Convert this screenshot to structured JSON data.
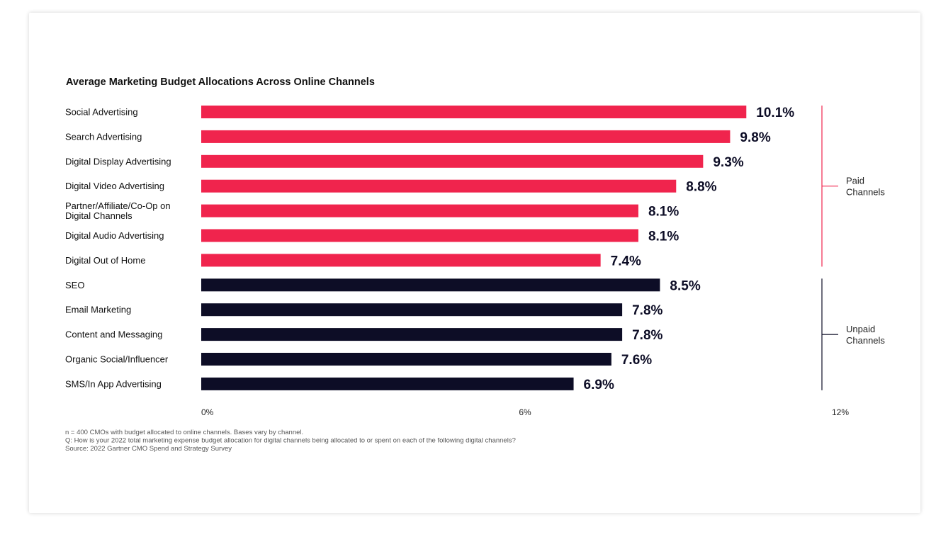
{
  "chart_data": {
    "type": "bar",
    "orientation": "horizontal",
    "title": "Average Marketing Budget Allocations Across Online Channels",
    "categories": [
      [
        "Social Advertising"
      ],
      [
        "Search Advertising"
      ],
      [
        "Digital Display Advertising"
      ],
      [
        "Digital Video Advertising"
      ],
      [
        "Partner/Affiliate/Co-Op on",
        "Digital Channels"
      ],
      [
        "Digital Audio Advertising"
      ],
      [
        "Digital Out of Home"
      ],
      [
        "SEO"
      ],
      [
        "Email Marketing"
      ],
      [
        "Content and Messaging"
      ],
      [
        "Organic Social/Influencer"
      ],
      [
        "SMS/In App Advertising"
      ]
    ],
    "values": [
      10.1,
      9.8,
      9.3,
      8.8,
      8.1,
      8.1,
      7.4,
      8.5,
      7.8,
      7.8,
      7.6,
      6.9
    ],
    "value_labels": [
      "10.1%",
      "9.8%",
      "9.3%",
      "8.8%",
      "8.1%",
      "8.1%",
      "7.4%",
      "8.5%",
      "7.8%",
      "7.8%",
      "7.6%",
      "6.9%"
    ],
    "groups": [
      {
        "label": [
          "Paid",
          "Channels"
        ],
        "start": 0,
        "end": 6,
        "color": "#f0244d"
      },
      {
        "label": [
          "Unpaid",
          "Channels"
        ],
        "start": 7,
        "end": 11,
        "color": "#0d0d26"
      }
    ],
    "xlim": [
      0,
      12
    ],
    "xticks": [
      0,
      6,
      12
    ],
    "xtick_labels": [
      "0%",
      "6%",
      "12%"
    ],
    "grid": false
  },
  "footnotes": [
    "n = 400 CMOs with budget allocated to online channels. Bases vary by channel.",
    "Q: How is your 2022 total marketing expense budget allocation for digital channels being allocated to or spent on each of the following digital channels?",
    "Source: 2022 Gartner CMO Spend and Strategy Survey"
  ]
}
